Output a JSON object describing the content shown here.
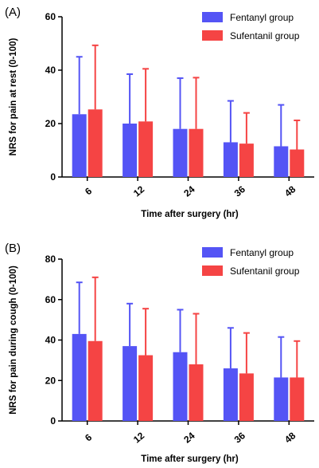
{
  "chart_data": [
    {
      "type": "bar",
      "panel_label": "(A)",
      "categories": [
        "6",
        "12",
        "24",
        "36",
        "48"
      ],
      "xlabel": "Time after surgery (hr)",
      "ylabel": "NRS for pain at rest (0-100)",
      "ylim": [
        0,
        60
      ],
      "yticks": [
        "0",
        "20",
        "40",
        "60"
      ],
      "legend_position": "top-right",
      "error_bars": "upper only",
      "series": [
        {
          "name": "Fentanyl group",
          "color": "#5454f5",
          "values": [
            23.5,
            20,
            18,
            13,
            11.5
          ],
          "errors_upper": [
            45,
            38.5,
            37,
            28.5,
            27
          ]
        },
        {
          "name": "Sufentanil group",
          "color": "#f54444",
          "values": [
            25.3,
            20.8,
            18,
            12.5,
            10.3
          ],
          "errors_upper": [
            49.3,
            40.5,
            37.2,
            24,
            21.2
          ]
        }
      ]
    },
    {
      "type": "bar",
      "panel_label": "(B)",
      "categories": [
        "6",
        "12",
        "24",
        "36",
        "48"
      ],
      "xlabel": "Time after surgery (hr)",
      "ylabel": "NRS for pain during cough (0-100)",
      "ylim": [
        0,
        80
      ],
      "yticks": [
        "0",
        "20",
        "40",
        "60",
        "80"
      ],
      "legend_position": "top-right",
      "error_bars": "upper only",
      "series": [
        {
          "name": "Fentanyl group",
          "color": "#5454f5",
          "values": [
            43,
            37,
            34,
            26,
            21.5
          ],
          "errors_upper": [
            68.5,
            58,
            55,
            46,
            41.5
          ]
        },
        {
          "name": "Sufentanil group",
          "color": "#f54444",
          "values": [
            39.5,
            32.5,
            28,
            23.5,
            21.5
          ],
          "errors_upper": [
            71,
            55.5,
            53,
            43.5,
            39.5
          ]
        }
      ]
    }
  ]
}
